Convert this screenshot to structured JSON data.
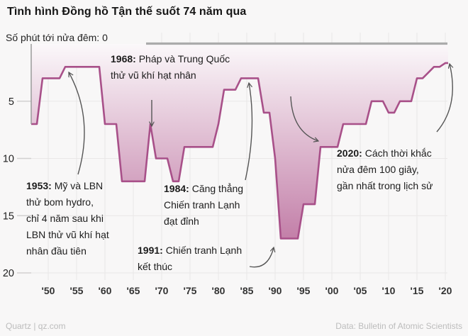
{
  "title": "Tình hình Đồng hồ Tận thế suốt 74 năm qua",
  "footer": {
    "credit_left": "Quartz | qz.com",
    "credit_right": "Data: Bulletin of Atomic Scientists"
  },
  "chart_data": {
    "type": "area",
    "title": "Tình hình Đồng hồ Tận thế suốt 74 năm qua",
    "ylabel": "Số phút tới nửa đêm: 0",
    "values_unit": "minutes to midnight",
    "y_axis": {
      "ticks": [
        5,
        10,
        15,
        20
      ],
      "range": [
        0,
        20
      ],
      "inverted": true,
      "zero_label": "0"
    },
    "x_axis": {
      "tick_labels": [
        "'50",
        "'55",
        "'60",
        "'65",
        "'70",
        "'75",
        "'80",
        "'85",
        "'90",
        "'95",
        "'00",
        "'05",
        "'10",
        "'15",
        "'20"
      ],
      "tick_years": [
        1950,
        1955,
        1960,
        1965,
        1970,
        1975,
        1980,
        1985,
        1990,
        1995,
        2000,
        2005,
        2010,
        2015,
        2020
      ],
      "range": [
        1947,
        2020.5
      ]
    },
    "grid": true,
    "legend": "none",
    "series": [
      {
        "name": "Minutes to midnight",
        "steps": [
          [
            1947,
            7
          ],
          [
            1949,
            3
          ],
          [
            1953,
            2
          ],
          [
            1960,
            7
          ],
          [
            1963,
            12
          ],
          [
            1968,
            7
          ],
          [
            1969,
            10
          ],
          [
            1972,
            12
          ],
          [
            1974,
            9
          ],
          [
            1980,
            7
          ],
          [
            1981,
            4
          ],
          [
            1984,
            3
          ],
          [
            1988,
            6
          ],
          [
            1990,
            10
          ],
          [
            1991,
            17
          ],
          [
            1995,
            14
          ],
          [
            1998,
            9
          ],
          [
            2002,
            7
          ],
          [
            2007,
            5
          ],
          [
            2010,
            6
          ],
          [
            2012,
            5
          ],
          [
            2015,
            3
          ],
          [
            2017,
            2.5
          ],
          [
            2018,
            2
          ],
          [
            2020,
            1.667
          ]
        ]
      }
    ],
    "colors": {
      "line": "#a85089",
      "fill_top": "#fbf8fa",
      "fill_bottom": "#b96a9a",
      "zero_line": "#ababab",
      "axis_start_line": "#9a9a9a",
      "grid": "#e9e7e7",
      "tick": "#d2d0d0",
      "arrow": "#555555",
      "axis_text": "#222222"
    },
    "annotations": {
      "a1953": {
        "label": "1953:",
        "lines": [
          "Mỹ và LBN",
          "thử bom hydro,",
          "chỉ 4 năm sau khi",
          "LBN thử vũ khí hạt",
          "nhân đầu tiên"
        ]
      },
      "a1968": {
        "label": "1968:",
        "lines": [
          "Pháp và Trung Quốc",
          "thử vũ khí hạt nhân"
        ]
      },
      "a1984": {
        "label": "1984:",
        "lines": [
          "Căng thẳng",
          "Chiến tranh Lạnh",
          "đạt đỉnh"
        ]
      },
      "a1991": {
        "label": "1991:",
        "lines": [
          "Chiến tranh Lạnh",
          "kết thúc"
        ]
      },
      "a2020": {
        "label": "2020:",
        "lines": [
          "Cách thời khắc",
          "nửa đêm 100 giây,",
          "gần nhất trong lịch sử"
        ]
      }
    },
    "arrows": [
      {
        "name": "arrow-1953",
        "from": [
          110,
          246
        ],
        "ctrl": [
          133,
          168
        ],
        "to": [
          97,
          102
        ]
      },
      {
        "name": "arrow-1968",
        "from": [
          214,
          141
        ],
        "ctrl": [
          214,
          160
        ],
        "to": [
          214,
          178
        ]
      },
      {
        "name": "arrow-1984",
        "from": [
          346,
          254
        ],
        "ctrl": [
          362,
          180
        ],
        "to": [
          351,
          117
        ]
      },
      {
        "name": "arrow-1991",
        "from": [
          352,
          376
        ],
        "ctrl": [
          378,
          381
        ],
        "to": [
          386,
          349
        ]
      },
      {
        "name": "arrow-1998",
        "from": [
          410,
          136
        ],
        "ctrl": [
          412,
          186
        ],
        "to": [
          449,
          199
        ]
      },
      {
        "name": "arrow-2020",
        "from": [
          616,
          186
        ],
        "ctrl": [
          648,
          148
        ],
        "to": [
          634,
          90
        ]
      }
    ]
  }
}
